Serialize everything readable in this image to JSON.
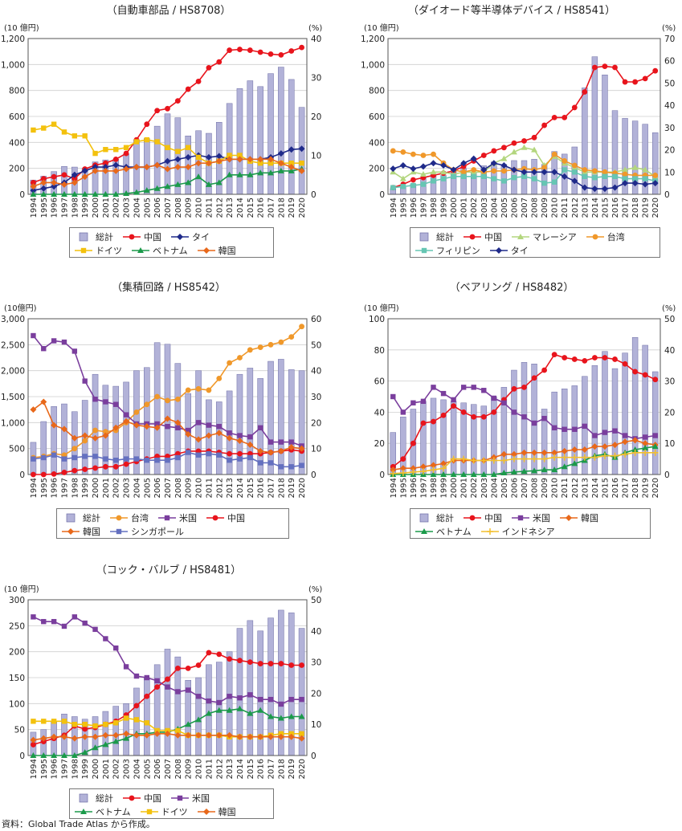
{
  "years": [
    "1994",
    "1995",
    "1996",
    "1997",
    "1998",
    "1999",
    "2000",
    "2001",
    "2002",
    "2003",
    "2004",
    "2005",
    "2006",
    "2007",
    "2008",
    "2009",
    "2010",
    "2011",
    "2012",
    "2013",
    "2014",
    "2015",
    "2016",
    "2017",
    "2018",
    "2019",
    "2020"
  ],
  "series_styles": {
    "中国": {
      "color": "#e8141c",
      "marker": "circle"
    },
    "タイ": {
      "color": "#1f2a8a",
      "marker": "diamond"
    },
    "ドイツ": {
      "color": "#f3c10d",
      "marker": "square"
    },
    "ベトナム": {
      "color": "#1b9a4a",
      "marker": "triangle"
    },
    "韓国": {
      "color": "#e8681a",
      "marker": "diamond"
    },
    "マレーシア": {
      "color": "#b3d67e",
      "marker": "triangle"
    },
    "台湾": {
      "color": "#f0982a",
      "marker": "circle"
    },
    "フィリピン": {
      "color": "#66c6b3",
      "marker": "square"
    },
    "米国": {
      "color": "#7a3e9d",
      "marker": "square"
    },
    "シンガポール": {
      "color": "#6470c0",
      "marker": "square"
    },
    "インドネシア": {
      "color": "#f2bf2e",
      "marker": "plus"
    }
  },
  "bar_style": {
    "fill": "#b2b2d8",
    "stroke": "#6e6ea6"
  },
  "source_note": "資料：Global Trade Atlas から作成。",
  "chart_data": [
    {
      "type": "bar+line",
      "title": "（自動車部品 / HS8708）",
      "ylabel_left": "(10 億円)",
      "ylabel_right": "(%)",
      "ylim_left": [
        0,
        1200
      ],
      "yticks_left": [
        "0",
        "200",
        "400",
        "600",
        "800",
        "1,000",
        "1,200"
      ],
      "ylim_right": [
        0,
        40
      ],
      "yticks_right": [
        "0",
        "10",
        "20",
        "30",
        "40"
      ],
      "bar_name": "総計",
      "bar_values": [
        110,
        140,
        175,
        215,
        210,
        200,
        250,
        265,
        270,
        310,
        420,
        430,
        525,
        620,
        590,
        450,
        490,
        470,
        555,
        700,
        815,
        875,
        830,
        930,
        980,
        885,
        670
      ],
      "series": [
        {
          "name": "中国",
          "values": [
            3,
            4,
            4.5,
            5,
            4,
            6.5,
            7.5,
            8,
            9,
            10.5,
            14,
            18,
            21.5,
            22,
            24,
            27,
            29,
            32.5,
            34,
            37,
            37.2,
            37,
            36.5,
            36,
            35.8,
            36.8,
            37.7
          ]
        },
        {
          "name": "タイ",
          "values": [
            1,
            1.5,
            2,
            3,
            5,
            6,
            7,
            7,
            7.5,
            7,
            7,
            7,
            7.5,
            8.5,
            9,
            9.5,
            10,
            9.5,
            9.8,
            9,
            9,
            9,
            9,
            9.5,
            10.5,
            11.5,
            11.7
          ]
        },
        {
          "name": "ドイツ",
          "values": [
            16.5,
            17,
            18,
            16,
            15,
            15,
            10.5,
            11.5,
            11.5,
            12,
            13.5,
            14,
            13.5,
            12,
            11,
            12,
            9.5,
            8,
            8.5,
            10,
            10,
            8.5,
            8,
            8,
            8,
            8,
            8
          ]
        },
        {
          "name": "ベトナム",
          "values": [
            0,
            0,
            0,
            0,
            0,
            0,
            0,
            0,
            0,
            0.2,
            0.5,
            1,
            1.5,
            2,
            2.5,
            3,
            4.5,
            2.5,
            3,
            5,
            5,
            5,
            5.5,
            5.5,
            6,
            6,
            6.5
          ]
        },
        {
          "name": "韓国",
          "values": [
            2,
            3,
            3,
            2.5,
            3,
            4.5,
            6,
            6,
            6,
            6.5,
            7,
            7,
            7.5,
            6.5,
            7,
            7,
            8,
            8,
            8.5,
            9,
            9,
            9,
            9,
            9,
            8,
            7,
            6
          ]
        }
      ],
      "legend": [
        "総計",
        "中国",
        "タイ",
        "ドイツ",
        "ベトナム",
        "韓国"
      ]
    },
    {
      "type": "bar+line",
      "title": "（ダイオード等半導体デバイス / HS8541）",
      "ylabel_left": "(10 億円)",
      "ylabel_right": "(%)",
      "ylim_left": [
        0,
        1200
      ],
      "yticks_left": [
        "0",
        "200",
        "400",
        "600",
        "800",
        "1,000",
        "1,200"
      ],
      "ylim_right": [
        0,
        70
      ],
      "yticks_right": [
        "0",
        "10",
        "20",
        "30",
        "40",
        "50",
        "60",
        "70"
      ],
      "bar_name": "総計",
      "bar_values": [
        45,
        55,
        80,
        130,
        160,
        145,
        180,
        200,
        170,
        220,
        250,
        230,
        260,
        260,
        270,
        230,
        330,
        310,
        365,
        820,
        1060,
        920,
        645,
        585,
        565,
        540,
        475
      ],
      "series": [
        {
          "name": "中国",
          "values": [
            3,
            4.5,
            6.5,
            7.5,
            8.5,
            9.5,
            10.5,
            12.5,
            15,
            17.5,
            19.5,
            21,
            23,
            24,
            25.5,
            31,
            34.5,
            34.5,
            39,
            46,
            57,
            57.5,
            57,
            50.5,
            50.5,
            52,
            55.5
          ]
        },
        {
          "name": "マレーシア",
          "values": [
            10,
            7,
            10,
            9,
            10,
            10,
            9,
            10,
            10,
            10,
            14,
            16,
            19,
            21,
            20,
            13,
            17,
            14,
            12,
            10,
            10,
            10,
            10,
            11,
            12,
            11,
            8
          ]
        },
        {
          "name": "台湾",
          "values": [
            19.5,
            19,
            18,
            17.5,
            18,
            14,
            11,
            10,
            11,
            10,
            10.5,
            10.5,
            11,
            11.5,
            11,
            12,
            18,
            15,
            13,
            11,
            10.5,
            10,
            9.5,
            9,
            8.5,
            8.5,
            8.5
          ]
        },
        {
          "name": "フィリピン",
          "values": [
            3,
            3.5,
            4,
            4.5,
            6,
            7,
            8,
            8,
            8,
            8,
            7,
            6,
            7.5,
            8,
            7,
            5,
            5.5,
            11,
            10,
            8,
            7.5,
            8,
            8,
            7,
            7,
            7,
            6
          ]
        },
        {
          "name": "タイ",
          "values": [
            11.5,
            13,
            11.5,
            12.5,
            14,
            13,
            11,
            14,
            16,
            11,
            14,
            13,
            11,
            10,
            10,
            10,
            10,
            8,
            6,
            3,
            2.5,
            2.5,
            3,
            5,
            5,
            4.5,
            5
          ]
        }
      ],
      "legend": [
        "総計",
        "中国",
        "マレーシア",
        "台湾",
        "フィリピン",
        "タイ"
      ]
    },
    {
      "type": "bar+line",
      "title": "（集積回路 / HS8542）",
      "ylabel_left": "(10億円)",
      "ylabel_right": "",
      "ylim_left": [
        0,
        3000
      ],
      "yticks_left": [
        "0",
        "500",
        "1,000",
        "1,500",
        "2,000",
        "2,500",
        "3,000"
      ],
      "ylim_right": [
        0,
        60
      ],
      "yticks_right": [
        "0",
        "10",
        "20",
        "30",
        "40",
        "50",
        "60"
      ],
      "bar_name": "総計",
      "bar_values": [
        620,
        1020,
        1310,
        1360,
        1210,
        1430,
        1930,
        1720,
        1700,
        1780,
        2000,
        2060,
        2540,
        2510,
        2140,
        1560,
        2000,
        1440,
        1400,
        1610,
        1930,
        2050,
        1850,
        2180,
        2220,
        2020,
        2000
      ],
      "series": [
        {
          "name": "台湾",
          "values": [
            6.5,
            7,
            8,
            7.5,
            10,
            13,
            17,
            16.5,
            17,
            20,
            24,
            27,
            30,
            28.5,
            29,
            32.5,
            33,
            32.5,
            37,
            43,
            45,
            48,
            49,
            50,
            51,
            53,
            57
          ]
        },
        {
          "name": "米国",
          "values": [
            53.5,
            48.5,
            51.5,
            51,
            47.5,
            36,
            29,
            28,
            27,
            23,
            19.5,
            19.5,
            19.5,
            18.5,
            18,
            17,
            20,
            19,
            18.5,
            16,
            15,
            14.5,
            18,
            12.5,
            12.5,
            12.5,
            11
          ]
        },
        {
          "name": "中国",
          "values": [
            0,
            0,
            0.2,
            0.8,
            1.5,
            2,
            2.5,
            3,
            3,
            4,
            5,
            6,
            7,
            7,
            8,
            9,
            9,
            9,
            8.5,
            8,
            8,
            8,
            8,
            8.5,
            9,
            9.5,
            9
          ]
        },
        {
          "name": "韓国",
          "values": [
            25,
            28,
            19,
            17.5,
            14,
            15,
            14,
            15,
            18,
            20.5,
            19,
            18.5,
            18,
            21.5,
            20,
            15.5,
            13.5,
            15,
            16,
            14,
            13,
            11.5,
            9,
            8.5,
            9,
            10.5,
            10
          ]
        },
        {
          "name": "シンガポール",
          "values": [
            6,
            6.5,
            7.5,
            6,
            6.5,
            7,
            7,
            6,
            5.5,
            6,
            6,
            5.5,
            5.5,
            5.5,
            6.5,
            8.5,
            7.5,
            8,
            7.5,
            5.5,
            6,
            6.5,
            4.5,
            4.5,
            3,
            3,
            3.5
          ]
        }
      ],
      "legend": [
        "総計",
        "台湾",
        "米国",
        "中国",
        "韓国",
        "シンガポール"
      ]
    },
    {
      "type": "bar+line",
      "title": "（ベアリング / HS8482）",
      "ylabel_left": "(10 億円)",
      "ylabel_right": "(%)",
      "ylim_left": [
        0,
        100
      ],
      "yticks_left": [
        "0",
        "20",
        "40",
        "60",
        "80",
        "100"
      ],
      "ylim_right": [
        0,
        50
      ],
      "yticks_right": [
        "0",
        "10",
        "20",
        "30",
        "40",
        "50"
      ],
      "bar_name": "総計",
      "bar_values": [
        27,
        37,
        42,
        47,
        49,
        48,
        47,
        46,
        45,
        44,
        50,
        56,
        67,
        72,
        71,
        42,
        53,
        55,
        57,
        63,
        70,
        79,
        68,
        78,
        88,
        83,
        66
      ],
      "series": [
        {
          "name": "中国",
          "values": [
            2.5,
            5,
            10,
            16.5,
            17,
            19,
            22,
            20,
            18.5,
            18.5,
            20,
            24,
            27.5,
            28,
            31,
            33.5,
            38.5,
            37.5,
            37,
            36.5,
            37.5,
            37.5,
            37,
            35.5,
            33,
            32,
            30.5
          ]
        },
        {
          "name": "米国",
          "values": [
            25,
            20,
            23,
            23.5,
            28,
            26,
            24,
            28,
            28,
            27,
            24.5,
            23,
            20,
            18.5,
            16.5,
            18,
            15,
            14.5,
            14.5,
            15.5,
            12.5,
            13.5,
            14,
            12.5,
            11.5,
            12,
            12.5
          ]
        },
        {
          "name": "韓国",
          "values": [
            1.5,
            2,
            2,
            2.5,
            3,
            3.5,
            4.5,
            4.5,
            4.5,
            4.5,
            5.5,
            6.5,
            6.5,
            7,
            7,
            7,
            7,
            7.5,
            8,
            8,
            9,
            9,
            9.5,
            10.5,
            11,
            10,
            9.5
          ]
        },
        {
          "name": "ベトナム",
          "values": [
            0,
            0,
            0,
            0,
            0,
            0,
            0,
            0,
            0,
            0,
            0,
            0.5,
            0.8,
            1,
            1.2,
            1.5,
            1.5,
            2.5,
            3.5,
            4.5,
            6,
            6.5,
            5.5,
            7,
            8,
            8.5,
            9
          ]
        },
        {
          "name": "インドネシア",
          "values": [
            0.3,
            0.5,
            0.8,
            1,
            1.5,
            2,
            5,
            5,
            4.5,
            4.5,
            4.5,
            4.5,
            5,
            5,
            5,
            5,
            5.5,
            5.5,
            5.5,
            5.5,
            5.5,
            6,
            6,
            6.5,
            7,
            7,
            7
          ]
        }
      ],
      "legend": [
        "総計",
        "中国",
        "米国",
        "韓国",
        "ベトナム",
        "インドネシア"
      ]
    },
    {
      "type": "bar+line",
      "title": "（コック・バルブ / HS8481）",
      "ylabel_left": "(10 億円)",
      "ylabel_right": "(%)",
      "ylim_left": [
        0,
        300
      ],
      "yticks_left": [
        "0",
        "50",
        "100",
        "150",
        "200",
        "250",
        "300"
      ],
      "ylim_right": [
        0,
        50
      ],
      "yticks_right": [
        "0",
        "10",
        "20",
        "30",
        "40",
        "50"
      ],
      "bar_name": "総計",
      "bar_values": [
        45,
        50,
        65,
        80,
        75,
        70,
        75,
        85,
        95,
        100,
        130,
        150,
        175,
        205,
        190,
        145,
        150,
        175,
        180,
        200,
        245,
        260,
        240,
        265,
        280,
        275,
        245
      ],
      "series": [
        {
          "name": "中国",
          "values": [
            3.5,
            4.5,
            5.5,
            6.5,
            9.5,
            8.5,
            9,
            10,
            11,
            13,
            16,
            19,
            22,
            24.5,
            28,
            28,
            29,
            33,
            32.5,
            31,
            30.5,
            30,
            29.5,
            29.5,
            29.5,
            29,
            29
          ]
        },
        {
          "name": "米国",
          "values": [
            44.5,
            43,
            43,
            41.5,
            44.5,
            42.5,
            40.5,
            37.5,
            34.5,
            28.5,
            25.5,
            25,
            24,
            22,
            20.5,
            21,
            19,
            17.5,
            17,
            19,
            18.5,
            19.5,
            18,
            18,
            16.5,
            18,
            18
          ]
        },
        {
          "name": "ベトナム",
          "values": [
            0,
            0,
            0,
            0,
            0,
            1,
            2.5,
            3.5,
            4.5,
            5.5,
            7,
            7,
            7.5,
            7.5,
            8.5,
            10,
            11.5,
            13.5,
            14.5,
            14.5,
            15,
            13.5,
            14.5,
            12.5,
            12,
            12.5,
            12.5
          ]
        },
        {
          "name": "ドイツ",
          "values": [
            11,
            11,
            11,
            11,
            10,
            10,
            9.5,
            10,
            10.5,
            12,
            11.5,
            10.5,
            8,
            8,
            8,
            6.5,
            6.5,
            6.5,
            6.5,
            6,
            6,
            6,
            6,
            6.5,
            7,
            7,
            7
          ]
        },
        {
          "name": "韓国",
          "values": [
            5,
            5.5,
            6,
            6,
            5.5,
            6,
            6,
            6.5,
            6.5,
            7,
            6.5,
            6.5,
            7,
            7,
            6.5,
            6.5,
            6.5,
            6.5,
            6.5,
            6.5,
            6,
            6,
            6,
            6,
            6,
            6,
            5.5
          ]
        }
      ],
      "legend": [
        "総計",
        "中国",
        "米国",
        "ベトナム",
        "ドイツ",
        "韓国"
      ]
    }
  ]
}
